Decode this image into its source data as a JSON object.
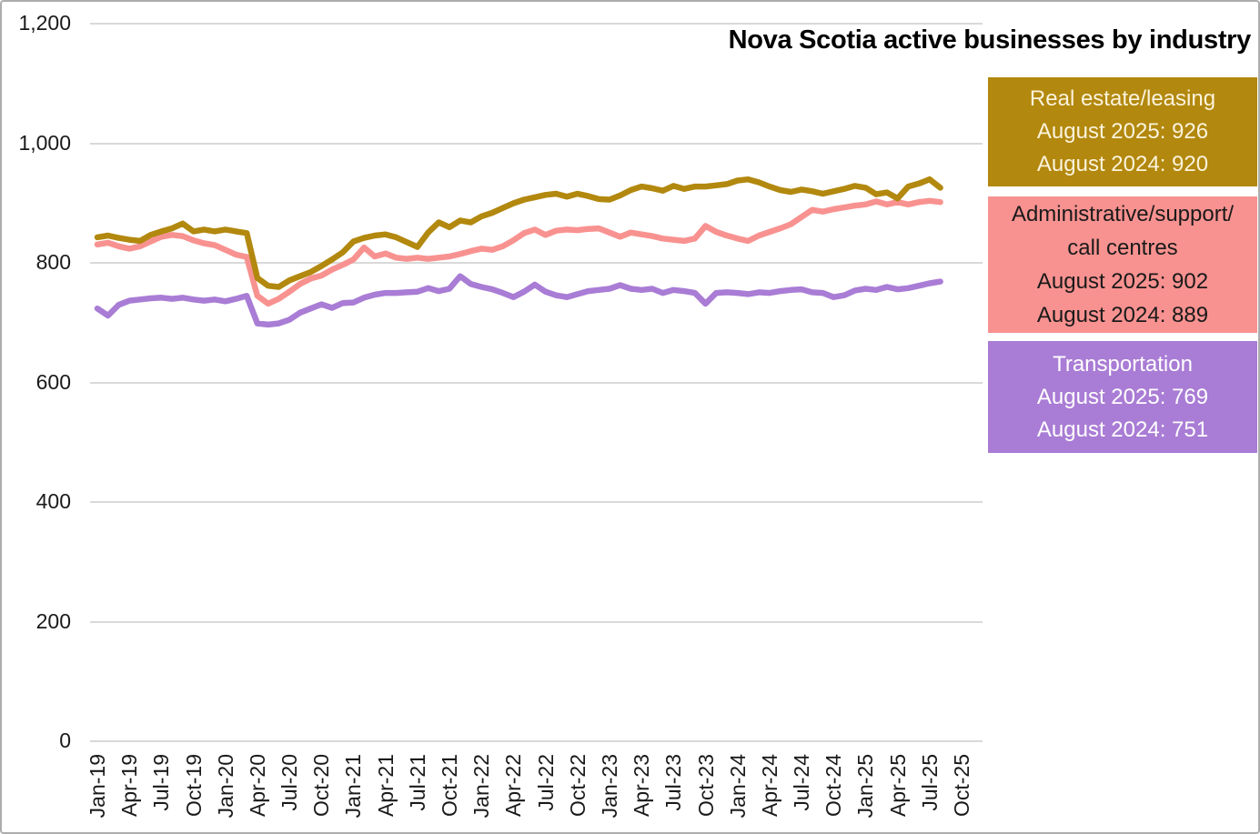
{
  "chart_data": {
    "type": "line",
    "title": "Nova Scotia active businesses by industry",
    "frequency": "monthly",
    "x_start": "Jan-19",
    "x_end": "Aug-25",
    "x_tick_labels": [
      "Jan-19",
      "Apr-19",
      "Jul-19",
      "Oct-19",
      "Jan-20",
      "Apr-20",
      "Jul-20",
      "Oct-20",
      "Jan-21",
      "Apr-21",
      "Jul-21",
      "Oct-21",
      "Jan-22",
      "Apr-22",
      "Jul-22",
      "Oct-22",
      "Jan-23",
      "Apr-23",
      "Jul-23",
      "Oct-23",
      "Jan-24",
      "Apr-24",
      "Jul-24",
      "Oct-24",
      "Jan-25",
      "Apr-25",
      "Jul-25",
      "Oct-25"
    ],
    "y_ticks": [
      {
        "value": 0,
        "label": "0"
      },
      {
        "value": 200,
        "label": "200"
      },
      {
        "value": 400,
        "label": "400"
      },
      {
        "value": 600,
        "label": "600"
      },
      {
        "value": 800,
        "label": "800"
      },
      {
        "value": 1000,
        "label": "1,000"
      },
      {
        "value": 1200,
        "label": "1,200"
      }
    ],
    "ylim": [
      0,
      1200
    ],
    "grid": "horizontal",
    "legend_position": "right",
    "series": [
      {
        "name": "Real estate/leasing",
        "color": "#B2880E",
        "august_2025": 926,
        "august_2024": 920,
        "values": [
          843,
          846,
          842,
          839,
          837,
          847,
          853,
          858,
          866,
          853,
          856,
          853,
          856,
          853,
          850,
          775,
          762,
          760,
          771,
          778,
          785,
          795,
          806,
          818,
          836,
          842,
          846,
          848,
          843,
          835,
          827,
          851,
          868,
          860,
          871,
          868,
          878,
          884,
          892,
          900,
          906,
          910,
          914,
          916,
          911,
          916,
          912,
          907,
          906,
          913,
          922,
          928,
          925,
          921,
          929,
          924,
          928,
          928,
          930,
          932,
          938,
          940,
          935,
          928,
          922,
          919,
          923,
          920,
          916,
          920,
          924,
          929,
          926,
          915,
          918,
          908,
          928,
          933,
          940,
          926
        ]
      },
      {
        "name": "Administrative/support/call centres",
        "color": "#F89290",
        "august_2025": 902,
        "august_2024": 889,
        "values": [
          831,
          834,
          828,
          824,
          828,
          836,
          844,
          847,
          845,
          838,
          833,
          830,
          822,
          814,
          810,
          745,
          732,
          740,
          752,
          765,
          774,
          779,
          789,
          797,
          806,
          826,
          811,
          816,
          809,
          807,
          809,
          807,
          809,
          811,
          815,
          820,
          824,
          822,
          828,
          838,
          850,
          856,
          847,
          854,
          856,
          855,
          857,
          858,
          851,
          844,
          851,
          848,
          845,
          841,
          839,
          837,
          841,
          862,
          852,
          846,
          841,
          837,
          846,
          852,
          858,
          865,
          877,
          889,
          886,
          890,
          893,
          896,
          898,
          903,
          898,
          902,
          898,
          902,
          904,
          902
        ]
      },
      {
        "name": "Transportation",
        "color": "#A97CD5",
        "august_2025": 769,
        "august_2024": 751,
        "values": [
          724,
          712,
          730,
          737,
          739,
          741,
          742,
          740,
          742,
          739,
          737,
          739,
          736,
          740,
          745,
          699,
          697,
          699,
          705,
          717,
          724,
          731,
          725,
          733,
          734,
          742,
          747,
          750,
          750,
          751,
          752,
          758,
          753,
          757,
          778,
          765,
          760,
          756,
          750,
          743,
          752,
          764,
          752,
          746,
          743,
          748,
          753,
          755,
          757,
          763,
          757,
          755,
          757,
          750,
          755,
          753,
          750,
          732,
          750,
          751,
          750,
          748,
          751,
          750,
          753,
          755,
          756,
          751,
          750,
          743,
          746,
          754,
          757,
          755,
          760,
          756,
          758,
          762,
          766,
          769
        ]
      }
    ]
  },
  "legend": {
    "boxes": [
      {
        "color": "#B2880E",
        "text_color": "#FBF3DC",
        "lines": [
          "Real estate/leasing",
          "August 2025: 926",
          "August 2024: 920"
        ]
      },
      {
        "color": "#F89290",
        "text_color": "#1A1A1A",
        "lines": [
          "Administrative/support/",
          "call centres",
          "August 2025: 902",
          "August 2024: 889"
        ]
      },
      {
        "color": "#A97CD5",
        "text_color": "#FFFFFF",
        "lines": [
          "Transportation",
          "August 2025: 769",
          "August 2024: 751"
        ]
      }
    ]
  }
}
